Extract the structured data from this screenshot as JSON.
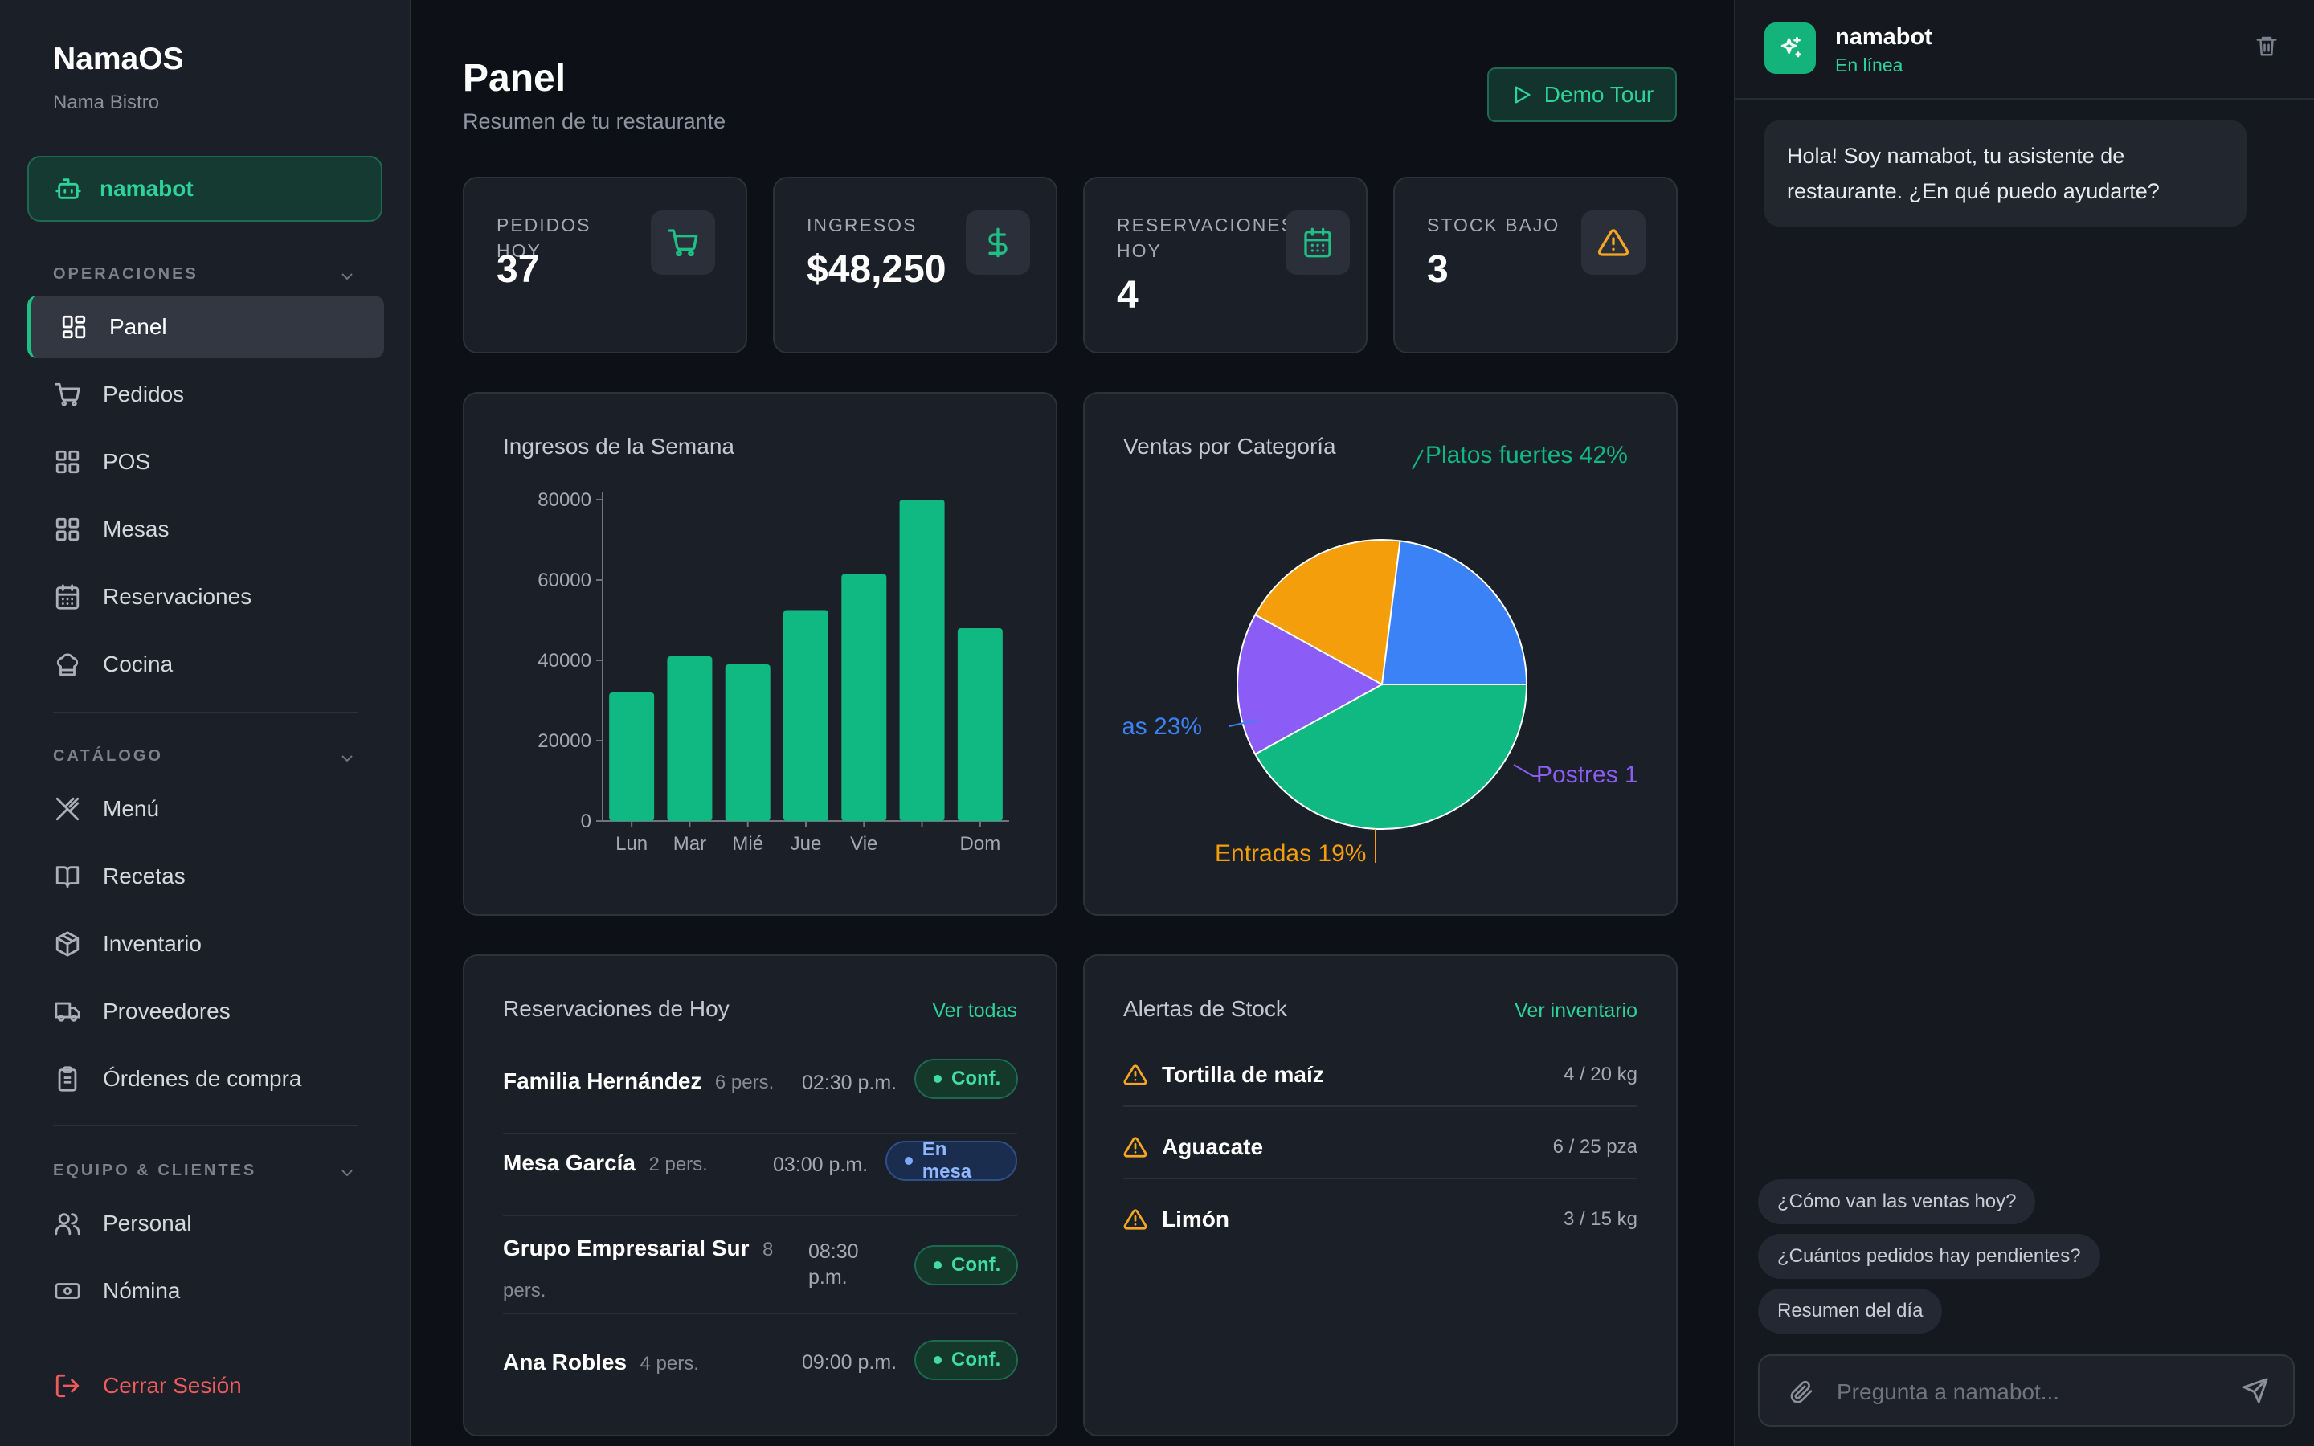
{
  "colors": {
    "accent": "#10b981",
    "blue": "#3b82f6",
    "amber": "#f59e0b",
    "purple": "#8b5cf6",
    "danger": "#ef5b5b"
  },
  "sidebar": {
    "brand": "NamaOS",
    "subtitle": "Nama Bistro",
    "bot_button": "namabot",
    "sections": [
      {
        "title": "OPERACIONES",
        "items": [
          {
            "label": "Panel",
            "icon": "layout-dashboard-icon",
            "active": true
          },
          {
            "label": "Pedidos",
            "icon": "cart-icon"
          },
          {
            "label": "POS",
            "icon": "grid-icon"
          },
          {
            "label": "Mesas",
            "icon": "grid-icon"
          },
          {
            "label": "Reservaciones",
            "icon": "calendar-icon"
          },
          {
            "label": "Cocina",
            "icon": "chef-hat-icon"
          }
        ]
      },
      {
        "title": "CATÁLOGO",
        "items": [
          {
            "label": "Menú",
            "icon": "utensils-icon"
          },
          {
            "label": "Recetas",
            "icon": "book-icon"
          },
          {
            "label": "Inventario",
            "icon": "box-icon"
          },
          {
            "label": "Proveedores",
            "icon": "truck-icon"
          },
          {
            "label": "Órdenes de compra",
            "icon": "clipboard-icon"
          }
        ]
      },
      {
        "title": "EQUIPO & CLIENTES",
        "items": [
          {
            "label": "Personal",
            "icon": "users-icon"
          },
          {
            "label": "Nómina",
            "icon": "banknote-icon"
          }
        ]
      }
    ],
    "logout": "Cerrar Sesión"
  },
  "header": {
    "title": "Panel",
    "subtitle": "Resumen de tu restaurante",
    "demo_button": "Demo Tour"
  },
  "stats": [
    {
      "label": "PEDIDOS HOY",
      "value": "37",
      "icon": "cart-icon",
      "color": "#10b981"
    },
    {
      "label": "INGRESOS",
      "value": "$48,250",
      "icon": "dollar-icon",
      "color": "#10b981"
    },
    {
      "label": "RESERVACIONES HOY",
      "value": "4",
      "icon": "calendar-icon",
      "color": "#10b981"
    },
    {
      "label": "STOCK BAJO",
      "value": "3",
      "icon": "alert-triangle-icon",
      "color": "#f59e0b"
    }
  ],
  "charts": {
    "weekly_title": "Ingresos de la Semana",
    "category_title": "Ventas por Categoría"
  },
  "chart_data": [
    {
      "type": "bar",
      "title": "Ingresos de la Semana",
      "categories": [
        "Lun",
        "Mar",
        "Mié",
        "Jue",
        "Vie",
        "",
        "Dom"
      ],
      "values": [
        32000,
        41000,
        39000,
        52500,
        61500,
        80000,
        48000
      ],
      "ylim": [
        0,
        80000
      ],
      "yticks": [
        "80000",
        "60000",
        "40000",
        "20000",
        "0"
      ],
      "color": "#10b981"
    },
    {
      "type": "pie",
      "title": "Ventas por Categoría",
      "slices": [
        {
          "label": "Platos fuertes 42%",
          "value": 42,
          "color": "#10b981"
        },
        {
          "label": "Postres 1",
          "value": 16,
          "color": "#8b5cf6"
        },
        {
          "label": "Entradas 19%",
          "value": 19,
          "color": "#f59e0b"
        },
        {
          "label": "as 23%",
          "value": 23,
          "color": "#3b82f6"
        }
      ]
    }
  ],
  "reservations": {
    "title": "Reservaciones de Hoy",
    "link": "Ver todas",
    "rows": [
      {
        "name": "Familia Hernández",
        "pers": "6 pers.",
        "time": "02:30 p.m.",
        "status": "Conf."
      },
      {
        "name": "Mesa García",
        "pers": "2 pers.",
        "time": "03:00 p.m.",
        "status": "En mesa"
      },
      {
        "name": "Grupo Empresarial Sur",
        "pers_a": "8",
        "pers_b": "pers.",
        "time_a": "08:30",
        "time_b": "p.m.",
        "status": "Conf."
      },
      {
        "name": "Ana Robles",
        "pers": "4 pers.",
        "time": "09:00 p.m.",
        "status": "Conf."
      }
    ]
  },
  "stock_alerts": {
    "title": "Alertas de Stock",
    "link": "Ver inventario",
    "rows": [
      {
        "name": "Tortilla de maíz",
        "qty": "4 / 20 kg"
      },
      {
        "name": "Aguacate",
        "qty": "6 / 25 pza"
      },
      {
        "name": "Limón",
        "qty": "3 / 15 kg"
      }
    ]
  },
  "chat": {
    "bot_name": "namabot",
    "status": "En línea",
    "greeting": "Hola! Soy namabot, tu asistente de restaurante. ¿En qué puedo ayudarte?",
    "suggestions": [
      "¿Cómo van las ventas hoy?",
      "¿Cuántos pedidos hay pendientes?",
      "Resumen del día"
    ],
    "input_placeholder": "Pregunta a namabot..."
  }
}
